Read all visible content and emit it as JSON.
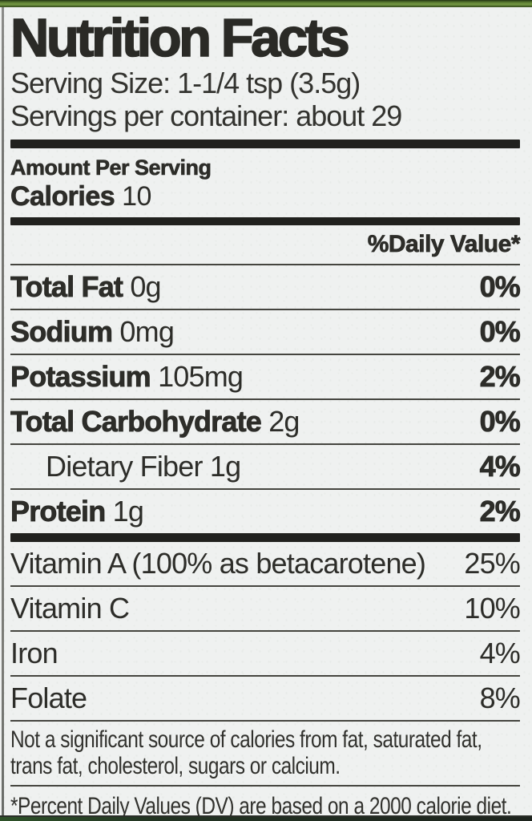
{
  "colors": {
    "paper": "#eff1f0",
    "ink": "#2a2a26",
    "top_strip_green": "#5d7d33",
    "bottom_strip_green": "#2e5229",
    "rule_dark": "#21211e"
  },
  "label": {
    "title": "Nutrition Facts",
    "serving_size": "Serving Size: 1-1/4 tsp (3.5g)",
    "servings_per_container": "Servings per container: about 29",
    "amount_per_serving": "Amount Per Serving",
    "calories": {
      "name": "Calories",
      "value": "10"
    },
    "daily_value_header": "%Daily Value*",
    "nutrients": [
      {
        "name": "Total Fat",
        "amount": "0g",
        "dv": "0%"
      },
      {
        "name": "Sodium",
        "amount": "0mg",
        "dv": "0%"
      },
      {
        "name": "Potassium",
        "amount": "105mg",
        "dv": "2%"
      },
      {
        "name": "Total Carbohydrate",
        "amount": "2g",
        "dv": "0%"
      },
      {
        "name": "Dietary Fiber",
        "amount": "1g",
        "dv": "4%"
      },
      {
        "name": "Protein",
        "amount": "1g",
        "dv": "2%"
      }
    ],
    "micronutrients": [
      {
        "name": "Vitamin A (100% as betacarotene)",
        "dv": "25%"
      },
      {
        "name": "Vitamin C",
        "dv": "10%"
      },
      {
        "name": "Iron",
        "dv": "4%"
      },
      {
        "name": "Folate",
        "dv": "8%"
      }
    ],
    "footnotes": {
      "not_significant": "Not a significant source of calories from fat, saturated fat, trans fat, cholesterol, sugars or calcium.",
      "percent_dv": "*Percent Daily Values (DV) are based on a 2000 calorie diet."
    }
  }
}
